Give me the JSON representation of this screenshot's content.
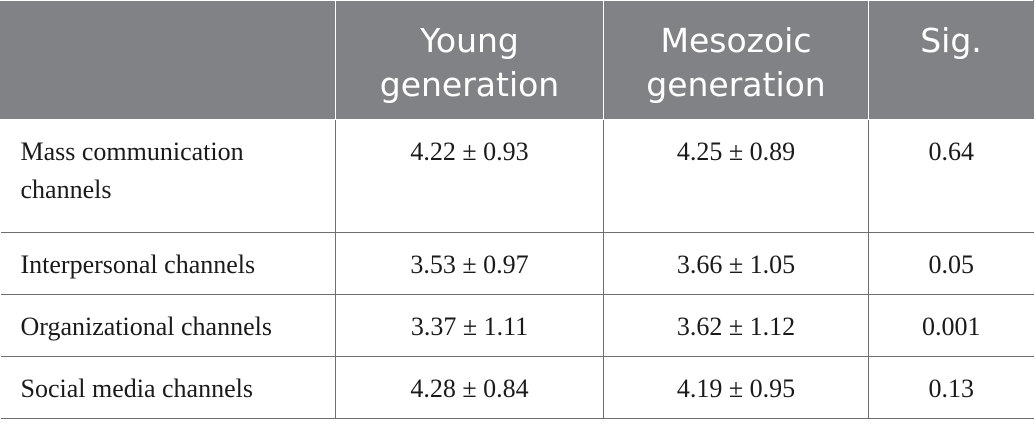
{
  "table": {
    "headers": [
      "",
      "Young generation",
      "Mesozoic generation",
      "Sig."
    ],
    "rows": [
      {
        "channel": "Mass communication channels",
        "young": "4.22 ± 0.93",
        "mesozoic": "4.25 ± 0.89",
        "sig": "0.64"
      },
      {
        "channel": "Interpersonal channels",
        "young": "3.53 ± 0.97",
        "mesozoic": "3.66 ± 1.05",
        "sig": "0.05"
      },
      {
        "channel": "Organizational channels",
        "young": "3.37 ± 1.11",
        "mesozoic": "3.62 ± 1.12",
        "sig": "0.001"
      },
      {
        "channel": "Social media channels",
        "young": "4.28 ± 0.84",
        "mesozoic": "4.19 ± 0.95",
        "sig": "0.13"
      }
    ]
  }
}
